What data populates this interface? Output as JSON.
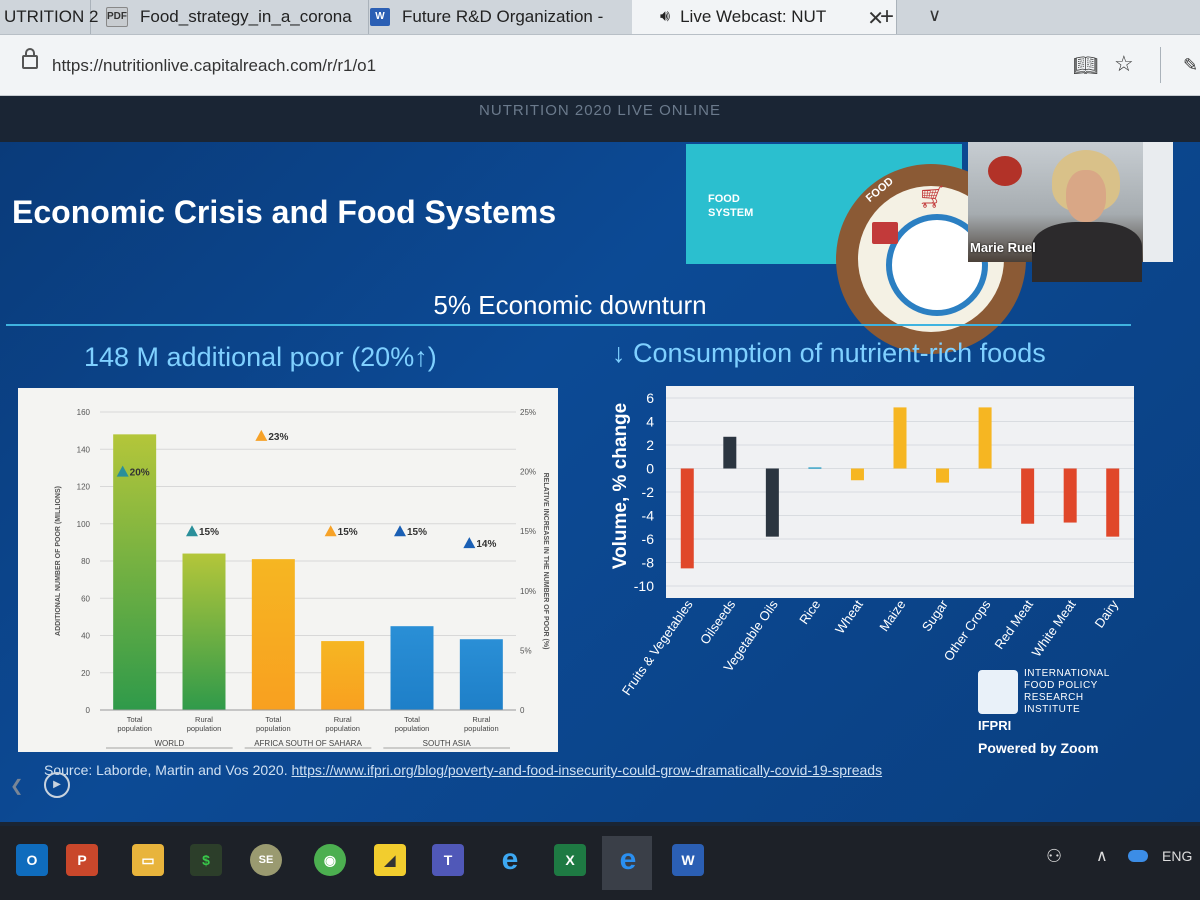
{
  "browser": {
    "tabs": [
      {
        "label": "UTRITION 2",
        "icon": "tab-icon",
        "active": false
      },
      {
        "label": "Food_strategy_in_a_corona",
        "icon": "pdf-icon",
        "active": false
      },
      {
        "label": "Future R&D Organization -",
        "icon": "word-icon",
        "active": false
      },
      {
        "label": "Live Webcast: NUT",
        "icon": "speaker-icon",
        "active": true
      }
    ],
    "new_tab": "+",
    "tab_menu": "∨",
    "url": "https://nutritionlive.capitalreach.com/r/r1/o1"
  },
  "webcast": {
    "title": "NUTRITION 2020 LIVE ONLINE",
    "speaker_name": "Marie Ruel",
    "food_panel_label": "FOOD\nSYSTEM",
    "food_panel_word": "FOOD"
  },
  "slide": {
    "title": "Economic Crisis and Food Systems",
    "subtitle": "5% Economic downturn",
    "left_heading": "148 M additional poor (20%↑)",
    "right_heading": "↓ Consumption of nutrient-rich foods",
    "source_prefix": "Source: Laborde, Martin and Vos 2020.",
    "source_link": "https://www.ifpri.org/blog/poverty-and-food-insecurity-could-grow-dramatically-covid-19-spreads",
    "ifpri_text": "INTERNATIONAL FOOD POLICY RESEARCH INSTITUTE",
    "ifpri_abbr": "IFPRI",
    "powered_by": "Powered by Zoom"
  },
  "taskbar": {
    "lang": "ENG",
    "apps": [
      "outlook-icon",
      "powerpoint-icon",
      "file-explorer-icon",
      "sage-icon",
      "se-icon",
      "chrome-icon",
      "sticky-notes-icon",
      "teams-icon",
      "ie-icon",
      "excel-icon",
      "edge-icon",
      "word-icon"
    ]
  },
  "chart_data": [
    {
      "type": "bar",
      "ylabel": "ADDITIONAL NUMBER OF POOR (MILLIONS)",
      "y2label": "RELATIVE INCREASE IN THE NUMBER OF POOR (%)",
      "ylim": [
        0,
        160
      ],
      "y2lim": [
        0,
        25
      ],
      "yticks": [
        0,
        20,
        40,
        60,
        80,
        100,
        120,
        140,
        160
      ],
      "y2ticks": [
        "0",
        "5%",
        "10%",
        "15%",
        "20%",
        "25%"
      ],
      "categories": [
        "Total population",
        "Rural population",
        "Total population",
        "Rural population",
        "Total population",
        "Rural population"
      ],
      "groups": [
        {
          "name": "WORLD",
          "span": [
            0,
            1
          ]
        },
        {
          "name": "AFRICA SOUTH OF SAHARA",
          "span": [
            2,
            3
          ]
        },
        {
          "name": "SOUTH ASIA",
          "span": [
            4,
            5
          ]
        }
      ],
      "values": [
        148,
        84,
        81,
        37,
        45,
        38
      ],
      "relative_increase_labels": [
        "20%",
        "15%",
        "23%",
        "15%",
        "15%",
        "14%"
      ],
      "relative_increase_values": [
        20,
        15,
        23,
        15,
        15,
        14
      ],
      "colors": [
        "#b4c63a",
        "#b4c63a",
        "#f6b622",
        "#f6b622",
        "#2a8fd6",
        "#2a8fd6"
      ],
      "marker_colors": [
        "#2a8f9a",
        "#2a8f9a",
        "#f6a228",
        "#f6a228",
        "#1a5fb4",
        "#1a5fb4"
      ],
      "grid": true
    },
    {
      "type": "bar",
      "ylabel": "Volume, % change",
      "ylim": [
        -10,
        6
      ],
      "yticks": [
        6,
        4,
        2,
        0,
        -2,
        -4,
        -6,
        -8,
        -10
      ],
      "categories": [
        "Fruits & Vegetables",
        "Oilseeds",
        "Vegetable Oils",
        "Rice",
        "Wheat",
        "Maize",
        "Sugar",
        "Other Crops",
        "Red Meat",
        "White Meat",
        "Dairy"
      ],
      "values": [
        -8.5,
        2.7,
        -5.8,
        0.1,
        -1.0,
        5.2,
        -1.2,
        5.2,
        -4.7,
        -4.6,
        -5.8
      ],
      "colors": [
        "#e0472a",
        "#2b3540",
        "#2b3540",
        "#3da5c8",
        "#f6b622",
        "#f6b622",
        "#f6b622",
        "#f6b622",
        "#e0472a",
        "#e0472a",
        "#e0472a"
      ],
      "grid": true
    }
  ]
}
